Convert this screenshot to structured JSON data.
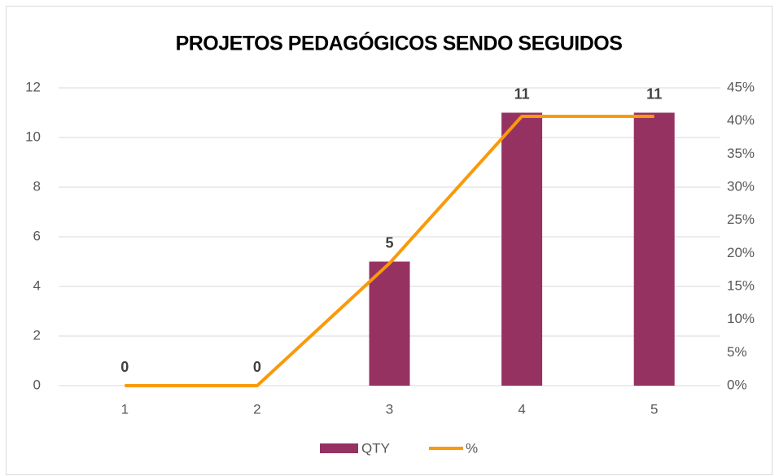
{
  "chart_data": {
    "type": "combo",
    "title": "PROJETOS PEDAGÓGICOS SENDO SEGUIDOS",
    "categories": [
      "1",
      "2",
      "3",
      "4",
      "5"
    ],
    "series": [
      {
        "name": "QTY",
        "type": "bar",
        "color": "#953262",
        "values": [
          0,
          0,
          5,
          11,
          11
        ]
      },
      {
        "name": "%",
        "type": "line",
        "axis": "y2",
        "color": "#f99a0a",
        "values": [
          0,
          0,
          18.5,
          40.7,
          40.7
        ]
      }
    ],
    "ylim": [
      0,
      12
    ],
    "yticks": [
      0,
      2,
      4,
      6,
      8,
      10,
      12
    ],
    "y2lim": [
      0,
      45
    ],
    "y2ticks": [
      {
        "value": 0,
        "label": "0%"
      },
      {
        "value": 5,
        "label": "5%"
      },
      {
        "value": 10,
        "label": "10%"
      },
      {
        "value": 15,
        "label": "15%"
      },
      {
        "value": 20,
        "label": "20%"
      },
      {
        "value": 25,
        "label": "25%"
      },
      {
        "value": 30,
        "label": "30%"
      },
      {
        "value": 35,
        "label": "35%"
      },
      {
        "value": 40,
        "label": "40%"
      },
      {
        "value": 45,
        "label": "45%"
      }
    ],
    "grid": true,
    "legend": "bottom"
  }
}
